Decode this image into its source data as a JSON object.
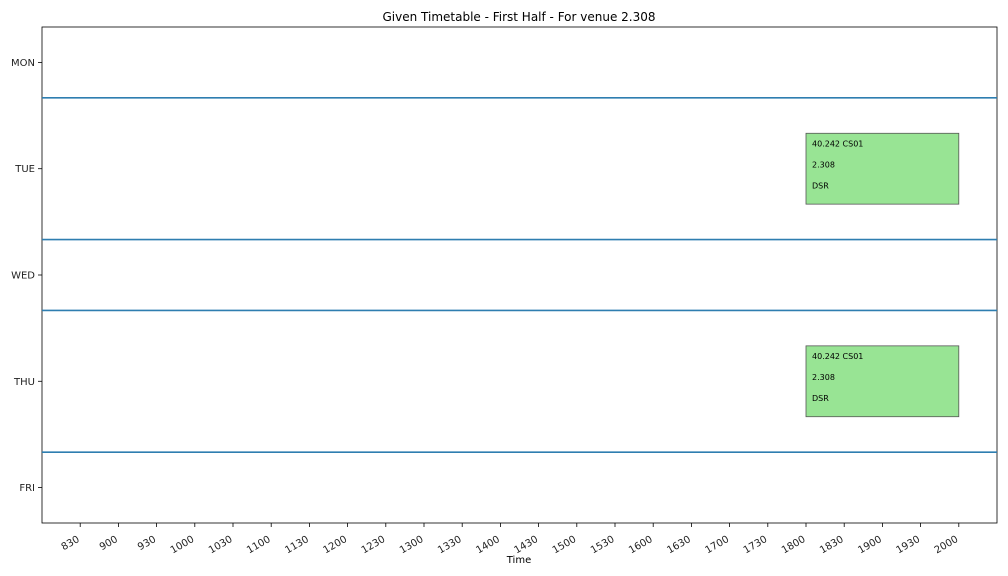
{
  "chart_data": {
    "type": "timetable",
    "title": "Given Timetable - First Half - For venue 2.308",
    "xlabel": "Time",
    "ylabel": "",
    "days": [
      "MON",
      "TUE",
      "WED",
      "THU",
      "FRI"
    ],
    "day_spans": [
      {
        "day": "MON",
        "top": 0,
        "bottom": 1
      },
      {
        "day": "TUE",
        "top": 1,
        "bottom": 3
      },
      {
        "day": "WED",
        "top": 3,
        "bottom": 4
      },
      {
        "day": "THU",
        "top": 4,
        "bottom": 6
      },
      {
        "day": "FRI",
        "top": 6,
        "bottom": 7
      }
    ],
    "separators": [
      1,
      3,
      4,
      6
    ],
    "x_ticks": [
      "830",
      "900",
      "930",
      "1000",
      "1030",
      "1100",
      "1130",
      "1200",
      "1230",
      "1300",
      "1330",
      "1400",
      "1430",
      "1500",
      "1530",
      "1600",
      "1630",
      "1700",
      "1730",
      "1800",
      "1830",
      "1900",
      "1930",
      "2000"
    ],
    "xlim": [
      "800",
      "2030"
    ],
    "ylim": [
      0,
      7
    ],
    "events": [
      {
        "day": "TUE",
        "start": "1800",
        "end": "2000",
        "row_top": 1.5,
        "row_bottom": 2.5,
        "lines": [
          "40.242 CS01",
          "2.308",
          "DSR"
        ]
      },
      {
        "day": "THU",
        "start": "1800",
        "end": "2000",
        "row_top": 4.5,
        "row_bottom": 5.5,
        "lines": [
          "40.242 CS01",
          "2.308",
          "DSR"
        ]
      }
    ],
    "grid": false,
    "colors": {
      "event_fill": "#98e494",
      "separator": "#2e7eb0",
      "axis": "#000000"
    }
  }
}
